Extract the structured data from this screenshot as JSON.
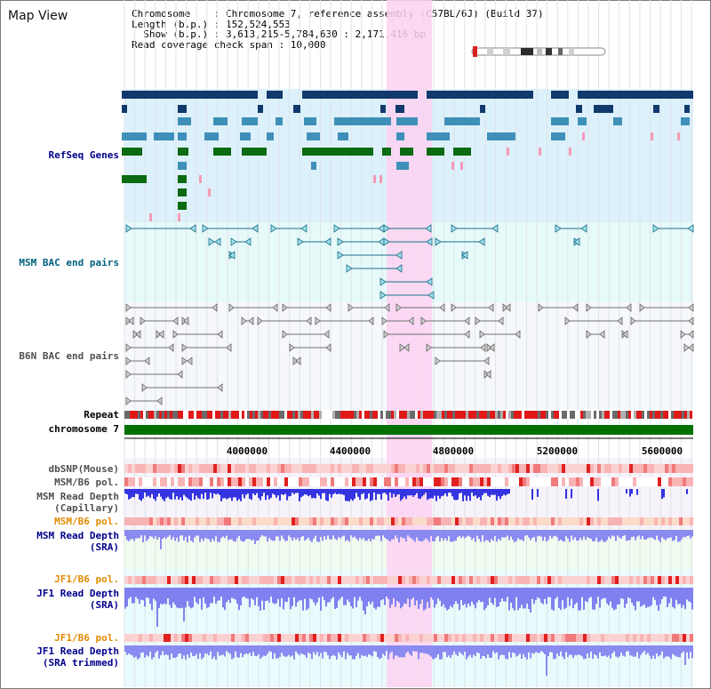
{
  "header": {
    "title": "Map View",
    "info_lines": [
      "Chromosome    : Chromosome 7, reference assembly (C57BL/6J) (Build 37)",
      "Length (b.p.) : 152,524,553",
      "  Show (b.p.) : 3,613,215-5,784,630 : 2,171,416 bp",
      "Read coverage check span : 10,000"
    ]
  },
  "tracks": {
    "refseq": "RefSeq Genes",
    "msm_bac": "MSM BAC end pairs",
    "b6n_bac": "B6N BAC end pairs",
    "repeat": "Repeat",
    "chromosome": "chromosome 7",
    "dbsnp": "dbSNP(Mouse)",
    "msm_b6_pol_1": "MSM/B6 pol.",
    "msm_depth_cap": "MSM Read Depth",
    "msm_depth_cap_sub": "(Capillary)",
    "msm_b6_pol_2": "MSM/B6 pol.",
    "msm_depth_sra": "MSM Read Depth",
    "msm_depth_sra_sub": "(SRA)",
    "jf1_b6_pol_1": "JF1/B6 pol.",
    "jf1_depth_sra": "JF1 Read Depth",
    "jf1_depth_sra_sub": "(SRA)",
    "jf1_b6_pol_2": "JF1/B6 pol.",
    "jf1_depth_trim": "JF1 Read Depth",
    "jf1_depth_trim_sub": "(SRA trimmed)"
  },
  "axis": {
    "ticks": [
      "4000000",
      "4400000",
      "4800000",
      "5200000",
      "5600000"
    ]
  },
  "colors": {
    "refseq_bg": "#dcf1fb",
    "msm_bg": "#e7fafa",
    "b6n_bg": "#f6f8fb",
    "highlight": "#fbd2f1",
    "gene_dark": "#113a6c",
    "gene_mid": "#3f90b8",
    "gene_green": "#0a6b12",
    "gene_pink": "#f59ab8",
    "chromosome_bar": "#007000",
    "depth_blue": "#3434e0",
    "depth_sra": "#8a8af0",
    "label_blue": "#00008b",
    "label_teal": "#00617e",
    "label_orange": "#e08a00",
    "label_gray": "#505050"
  }
}
